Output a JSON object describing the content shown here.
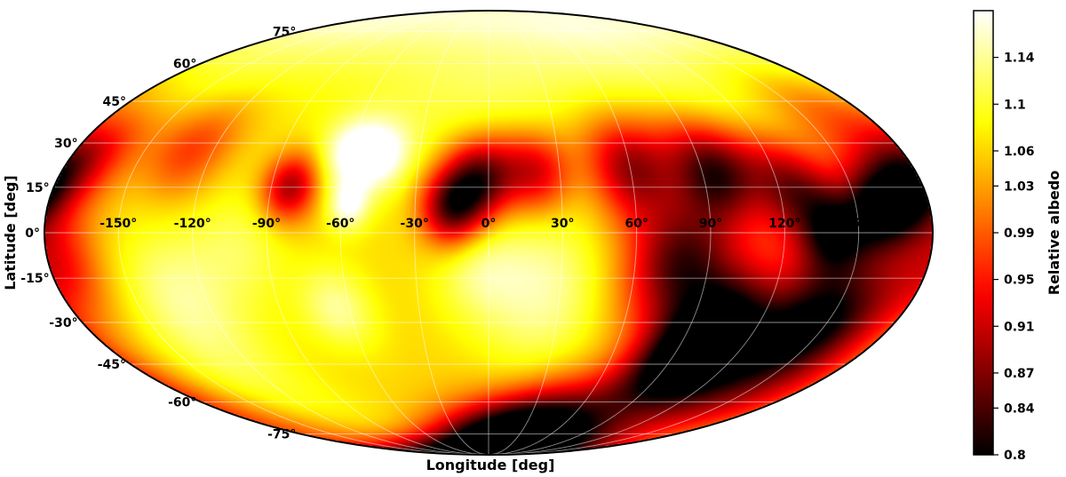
{
  "chart_data": {
    "type": "heatmap",
    "projection": "mollweide",
    "title": "",
    "xlabel": "Longitude [deg]",
    "ylabel": "Latitude [deg]",
    "xlim": [
      -180,
      180
    ],
    "ylim": [
      -90,
      90
    ],
    "grid": true,
    "lon_ticks": [
      "-150°",
      "-120°",
      "-90°",
      "-60°",
      "-30°",
      "0°",
      "30°",
      "60°",
      "90°",
      "120°",
      "150°"
    ],
    "lon_tick_values": [
      -150,
      -120,
      -90,
      -60,
      -30,
      0,
      30,
      60,
      90,
      120,
      150
    ],
    "lat_ticks": [
      "75°",
      "60°",
      "45°",
      "30°",
      "15°",
      "0°",
      "-15°",
      "-30°",
      "-45°",
      "-60°",
      "-75°"
    ],
    "lat_tick_values": [
      75,
      60,
      45,
      30,
      15,
      0,
      -15,
      -30,
      -45,
      -60,
      -75
    ],
    "colorbar": {
      "label": "Relative albedo",
      "colormap": "hot",
      "vmin": 0.8,
      "vmax": 1.18,
      "ticks": [
        "1.14",
        "1.1",
        "1.06",
        "1.03",
        "0.99",
        "0.95",
        "0.91",
        "0.87",
        "0.84",
        "0.8"
      ],
      "tick_values": [
        1.14,
        1.1,
        1.06,
        1.03,
        0.99,
        0.95,
        0.91,
        0.87,
        0.84,
        0.8
      ]
    },
    "baseline_albedo": 1.06,
    "features": [
      {
        "lon": 0,
        "lat": 60,
        "value": 1.12,
        "sigma": 35
      },
      {
        "lon": -150,
        "lat": 55,
        "value": 1.1,
        "sigma": 30
      },
      {
        "lon": 120,
        "lat": 60,
        "value": 1.11,
        "sigma": 30
      },
      {
        "lon": -60,
        "lat": 27,
        "value": 1.18,
        "sigma": 9
      },
      {
        "lon": -45,
        "lat": 25,
        "value": 1.16,
        "sigma": 8
      },
      {
        "lon": -57,
        "lat": 9,
        "value": 1.17,
        "sigma": 6
      },
      {
        "lon": 22,
        "lat": -18,
        "value": 1.14,
        "sigma": 17
      },
      {
        "lon": -5,
        "lat": -12,
        "value": 1.12,
        "sigma": 12
      },
      {
        "lon": -130,
        "lat": -20,
        "value": 1.13,
        "sigma": 16
      },
      {
        "lon": -65,
        "lat": -25,
        "value": 1.14,
        "sigma": 10
      },
      {
        "lon": -100,
        "lat": -5,
        "value": 1.11,
        "sigma": 14
      },
      {
        "lon": 30,
        "lat": -50,
        "value": 1.09,
        "sigma": 15
      },
      {
        "lon": -130,
        "lat": -50,
        "value": 1.1,
        "sigma": 18
      },
      {
        "lon": -82,
        "lat": 15,
        "value": 0.88,
        "sigma": 8
      },
      {
        "lon": -15,
        "lat": 8,
        "value": 0.84,
        "sigma": 9
      },
      {
        "lon": -3,
        "lat": 18,
        "value": 0.84,
        "sigma": 10
      },
      {
        "lon": 20,
        "lat": 20,
        "value": 0.9,
        "sigma": 10
      },
      {
        "lon": 60,
        "lat": 22,
        "value": 0.88,
        "sigma": 12
      },
      {
        "lon": 95,
        "lat": 20,
        "value": 0.83,
        "sigma": 12
      },
      {
        "lon": 125,
        "lat": 15,
        "value": 0.87,
        "sigma": 12
      },
      {
        "lon": 160,
        "lat": 8,
        "value": 0.82,
        "sigma": 10
      },
      {
        "lon": 175,
        "lat": 15,
        "value": 0.86,
        "sigma": 10
      },
      {
        "lon": 140,
        "lat": 0,
        "value": 0.85,
        "sigma": 10
      },
      {
        "lon": 78,
        "lat": -10,
        "value": 0.85,
        "sigma": 15
      },
      {
        "lon": 105,
        "lat": -30,
        "value": 0.86,
        "sigma": 15
      },
      {
        "lon": 140,
        "lat": -30,
        "value": 0.88,
        "sigma": 14
      },
      {
        "lon": 95,
        "lat": -45,
        "value": 0.83,
        "sigma": 14
      },
      {
        "lon": 40,
        "lat": -70,
        "value": 0.82,
        "sigma": 14
      },
      {
        "lon": 0,
        "lat": -80,
        "value": 0.86,
        "sigma": 14
      },
      {
        "lon": 150,
        "lat": -55,
        "value": 0.93,
        "sigma": 20
      },
      {
        "lon": -170,
        "lat": 25,
        "value": 0.93,
        "sigma": 12
      },
      {
        "lon": -130,
        "lat": 28,
        "value": 0.95,
        "sigma": 12
      },
      {
        "lon": -175,
        "lat": -10,
        "value": 0.95,
        "sigma": 12
      },
      {
        "lon": 160,
        "lat": 40,
        "value": 0.97,
        "sigma": 14
      },
      {
        "lon": 160,
        "lat": -20,
        "value": 0.96,
        "sigma": 14
      }
    ]
  }
}
